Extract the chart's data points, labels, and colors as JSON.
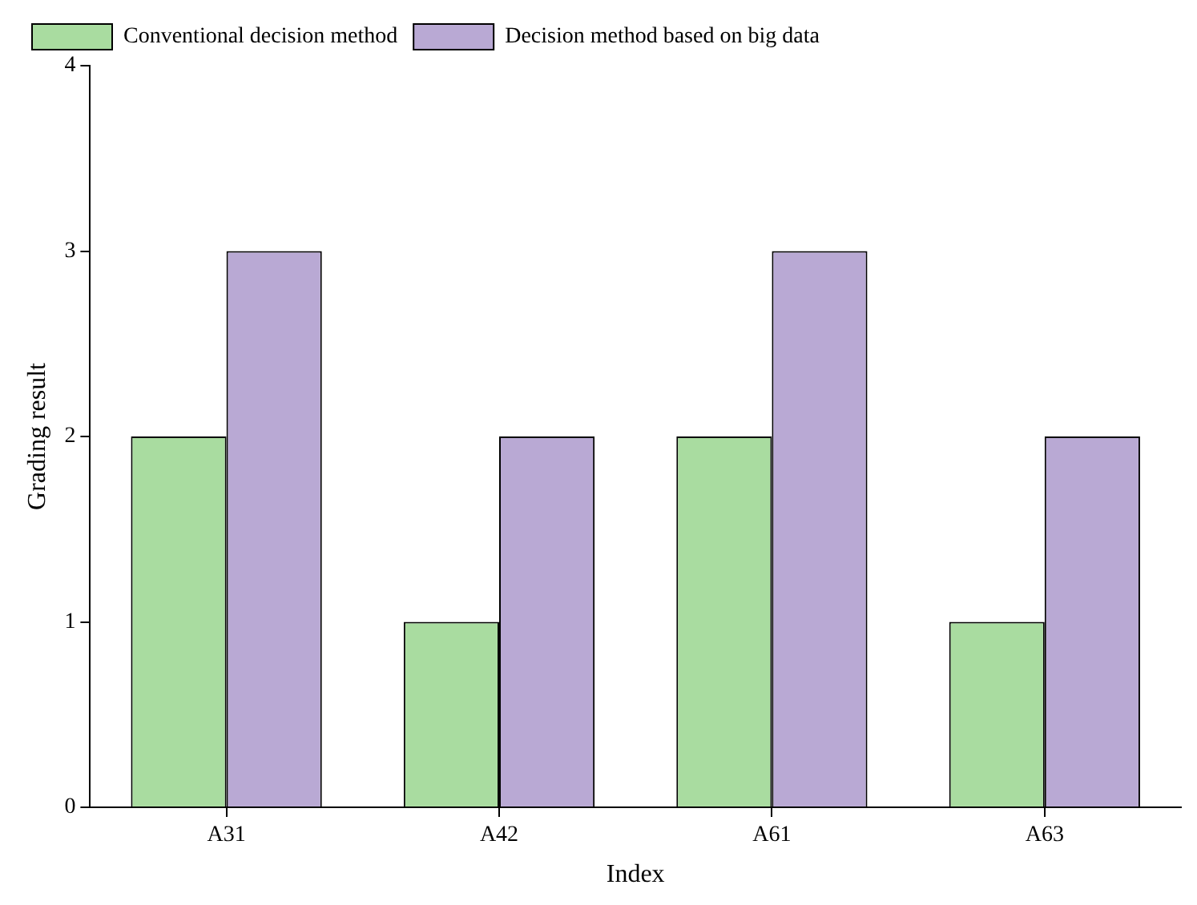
{
  "chart_data": {
    "type": "bar",
    "xlabel": "Index",
    "ylabel": "Grading result",
    "categories": [
      "A31",
      "A42",
      "A61",
      "A63"
    ],
    "series": [
      {
        "name": "Conventional decision method",
        "color": "#a9dca0",
        "values": [
          2,
          1,
          2,
          1
        ]
      },
      {
        "name": "Decision method based on big data",
        "color": "#b9a9d4",
        "values": [
          3,
          2,
          3,
          2
        ]
      }
    ],
    "ylim": [
      0,
      4
    ],
    "yticks": [
      0,
      1,
      2,
      3,
      4
    ],
    "grid": false,
    "legend": "top left"
  }
}
